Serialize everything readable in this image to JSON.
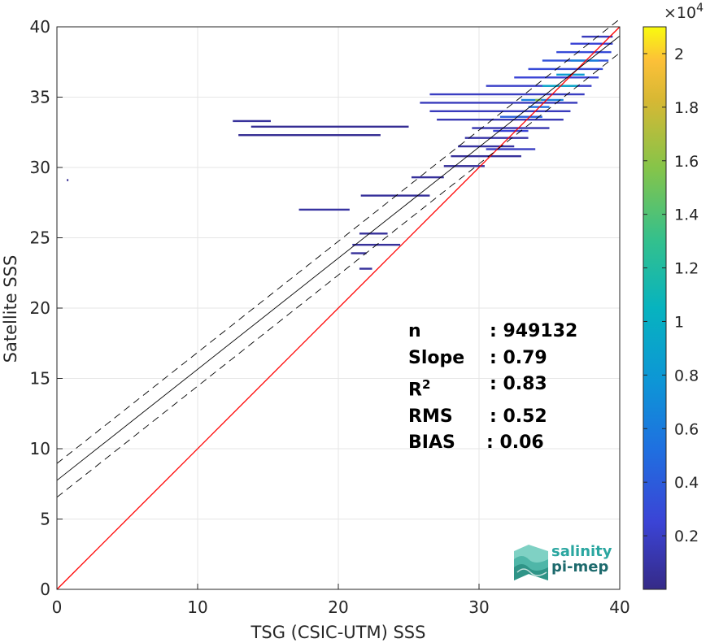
{
  "chart_data": {
    "type": "heatmap",
    "title": "",
    "xlabel": "TSG (CSIC-UTM) SSS",
    "ylabel": "Satellite SSS",
    "xlim": [
      0,
      40
    ],
    "ylim": [
      0,
      40
    ],
    "xticks": [
      "0",
      "10",
      "20",
      "30",
      "40"
    ],
    "yticks": [
      "0",
      "5",
      "10",
      "15",
      "20",
      "25",
      "30",
      "35",
      "40"
    ],
    "grid": true,
    "colormap": "parula",
    "colorbar": {
      "exponent_label": "×10",
      "exponent_power": "4",
      "range": [
        0,
        2.1
      ],
      "ticks": [
        "0.2",
        "0.4",
        "0.6",
        "0.8",
        "1",
        "1.2",
        "1.4",
        "1.6",
        "1.8",
        "2"
      ]
    },
    "lines": [
      {
        "kind": "identity",
        "color": "#ff0000",
        "x": [
          0,
          40
        ],
        "y": [
          0,
          40
        ]
      },
      {
        "kind": "fit",
        "color": "#000000",
        "style": "solid",
        "slope": 0.79,
        "intercept": 7.75
      },
      {
        "kind": "fit_upper",
        "color": "#000000",
        "style": "dashed",
        "slope": 0.79,
        "intercept": 8.95
      },
      {
        "kind": "fit_lower",
        "color": "#000000",
        "style": "dashed",
        "slope": 0.79,
        "intercept": 6.55
      }
    ],
    "density_segments": [
      {
        "x": [
          0.7,
          0.8
        ],
        "y": 29.1,
        "c": 0.02
      },
      {
        "x": [
          12.5,
          15.2
        ],
        "y": 33.3,
        "c": 0.03
      },
      {
        "x": [
          13.8,
          25.0
        ],
        "y": 32.9,
        "c": 0.02
      },
      {
        "x": [
          12.9,
          23.0
        ],
        "y": 32.3,
        "c": 0.02
      },
      {
        "x": [
          17.2,
          20.8
        ],
        "y": 27.0,
        "c": 0.04
      },
      {
        "x": [
          21.5,
          23.5
        ],
        "y": 25.3,
        "c": 0.03
      },
      {
        "x": [
          21.0,
          24.4
        ],
        "y": 24.5,
        "c": 0.03
      },
      {
        "x": [
          20.9,
          22.0
        ],
        "y": 23.9,
        "c": 0.03
      },
      {
        "x": [
          21.5,
          22.4
        ],
        "y": 22.8,
        "c": 0.03
      },
      {
        "x": [
          21.6,
          26.5
        ],
        "y": 28.0,
        "c": 0.03
      },
      {
        "x": [
          25.2,
          27.5
        ],
        "y": 29.3,
        "c": 0.03
      },
      {
        "x": [
          27.5,
          30.4
        ],
        "y": 30.1,
        "c": 0.03
      },
      {
        "x": [
          28.0,
          33.0
        ],
        "y": 30.8,
        "c": 0.03
      },
      {
        "x": [
          28.5,
          32.5
        ],
        "y": 31.5,
        "c": 0.04
      },
      {
        "x": [
          29.0,
          33.5
        ],
        "y": 32.1,
        "c": 0.05
      },
      {
        "x": [
          29.5,
          35.0
        ],
        "y": 32.8,
        "c": 0.06
      },
      {
        "x": [
          27.0,
          36.0
        ],
        "y": 33.4,
        "c": 0.07
      },
      {
        "x": [
          26.5,
          36.5
        ],
        "y": 34.0,
        "c": 0.08
      },
      {
        "x": [
          25.8,
          37.0
        ],
        "y": 34.6,
        "c": 0.08
      },
      {
        "x": [
          26.5,
          37.5
        ],
        "y": 35.2,
        "c": 0.09
      },
      {
        "x": [
          30.5,
          38.0
        ],
        "y": 35.8,
        "c": 0.1
      },
      {
        "x": [
          32.5,
          38.5
        ],
        "y": 36.4,
        "c": 0.12
      },
      {
        "x": [
          33.5,
          38.8
        ],
        "y": 37.0,
        "c": 0.14
      },
      {
        "x": [
          34.5,
          39.2
        ],
        "y": 37.6,
        "c": 0.16
      },
      {
        "x": [
          35.5,
          39.4
        ],
        "y": 38.2,
        "c": 0.14
      },
      {
        "x": [
          36.5,
          39.5
        ],
        "y": 38.8,
        "c": 0.12
      },
      {
        "x": [
          37.3,
          39.5
        ],
        "y": 39.3,
        "c": 0.08
      },
      {
        "x": [
          30.5,
          34.0
        ],
        "y": 31.3,
        "c": 0.09
      },
      {
        "x": [
          31.0,
          33.5
        ],
        "y": 32.6,
        "c": 0.12
      },
      {
        "x": [
          31.5,
          34.5
        ],
        "y": 33.6,
        "c": 0.2
      },
      {
        "x": [
          33.0,
          36.0
        ],
        "y": 34.8,
        "c": 0.3
      },
      {
        "x": [
          34.5,
          37.0
        ],
        "y": 35.8,
        "c": 0.45
      },
      {
        "x": [
          35.5,
          37.5
        ],
        "y": 36.6,
        "c": 0.4
      },
      {
        "x": [
          36.5,
          38.5
        ],
        "y": 37.6,
        "c": 0.3
      },
      {
        "x": [
          33.5,
          35.0
        ],
        "y": 34.3,
        "c": 0.25
      },
      {
        "x": [
          34.0,
          34.4
        ],
        "y": 34.8,
        "c": 0.75
      }
    ],
    "stats": [
      {
        "key": "n",
        "value": ": 949132"
      },
      {
        "key": "Slope",
        "value": ": 0.79"
      },
      {
        "key": "R",
        "sup": "2",
        "value": ": 0.83"
      },
      {
        "key": "RMS",
        "value": ": 0.52"
      },
      {
        "key": "BIAS",
        "value": ": 0.06"
      }
    ]
  },
  "logo": {
    "line1": "salinity",
    "line2": "pi-mep"
  }
}
